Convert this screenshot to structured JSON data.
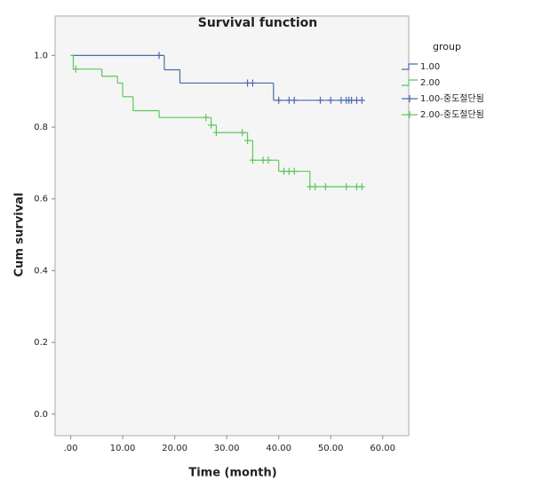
{
  "chart_data": {
    "type": "survival",
    "title": "Survival function",
    "x_label": "Time (month)",
    "y_label": "Cum survival",
    "legend_title": "group",
    "xlim": [
      -3,
      65
    ],
    "ylim": [
      -0.06,
      1.11
    ],
    "xticks": [
      {
        "value": 0,
        "label": ".00"
      },
      {
        "value": 10,
        "label": "10.00"
      },
      {
        "value": 20,
        "label": "20.00"
      },
      {
        "value": 30,
        "label": "30.00"
      },
      {
        "value": 40,
        "label": "40.00"
      },
      {
        "value": 50,
        "label": "50.00"
      },
      {
        "value": 60,
        "label": "60.00"
      }
    ],
    "yticks": [
      {
        "value": 0,
        "label": "0.0"
      },
      0.2,
      0.4,
      0.6,
      0.8,
      {
        "value": 1,
        "label": "1.0"
      }
    ],
    "series": [
      {
        "name": "1.00",
        "color": "#4a6aae",
        "x": [
          0,
          18,
          21,
          39,
          56
        ],
        "values": [
          1.0,
          0.96,
          0.923,
          0.875,
          0.875
        ]
      },
      {
        "name": "2.00",
        "color": "#5cc85c",
        "x": [
          0,
          0.5,
          6,
          9,
          10,
          12,
          17,
          27,
          28,
          34,
          35,
          40,
          46,
          56
        ],
        "values": [
          1.0,
          0.962,
          0.942,
          0.923,
          0.885,
          0.846,
          0.827,
          0.806,
          0.785,
          0.763,
          0.708,
          0.677,
          0.634,
          0.634
        ]
      }
    ],
    "censored": [
      {
        "name": "1.00-중도절단됨",
        "color": "#4a6aae",
        "x": [
          17,
          34,
          35,
          40,
          42,
          43,
          48,
          50,
          52,
          53,
          53.5,
          54,
          55,
          56
        ],
        "values": [
          1.0,
          0.923,
          0.923,
          0.875,
          0.875,
          0.875,
          0.875,
          0.875,
          0.875,
          0.875,
          0.875,
          0.875,
          0.875,
          0.875
        ]
      },
      {
        "name": "2.00-중도절단됨",
        "color": "#5cc85c",
        "x": [
          1,
          26,
          27,
          28,
          33,
          34,
          35,
          37,
          38,
          41,
          42,
          43,
          46,
          47,
          49,
          53,
          55,
          56
        ],
        "values": [
          0.962,
          0.827,
          0.806,
          0.785,
          0.785,
          0.763,
          0.708,
          0.708,
          0.708,
          0.677,
          0.677,
          0.677,
          0.634,
          0.634,
          0.634,
          0.634,
          0.634,
          0.634
        ]
      }
    ]
  }
}
